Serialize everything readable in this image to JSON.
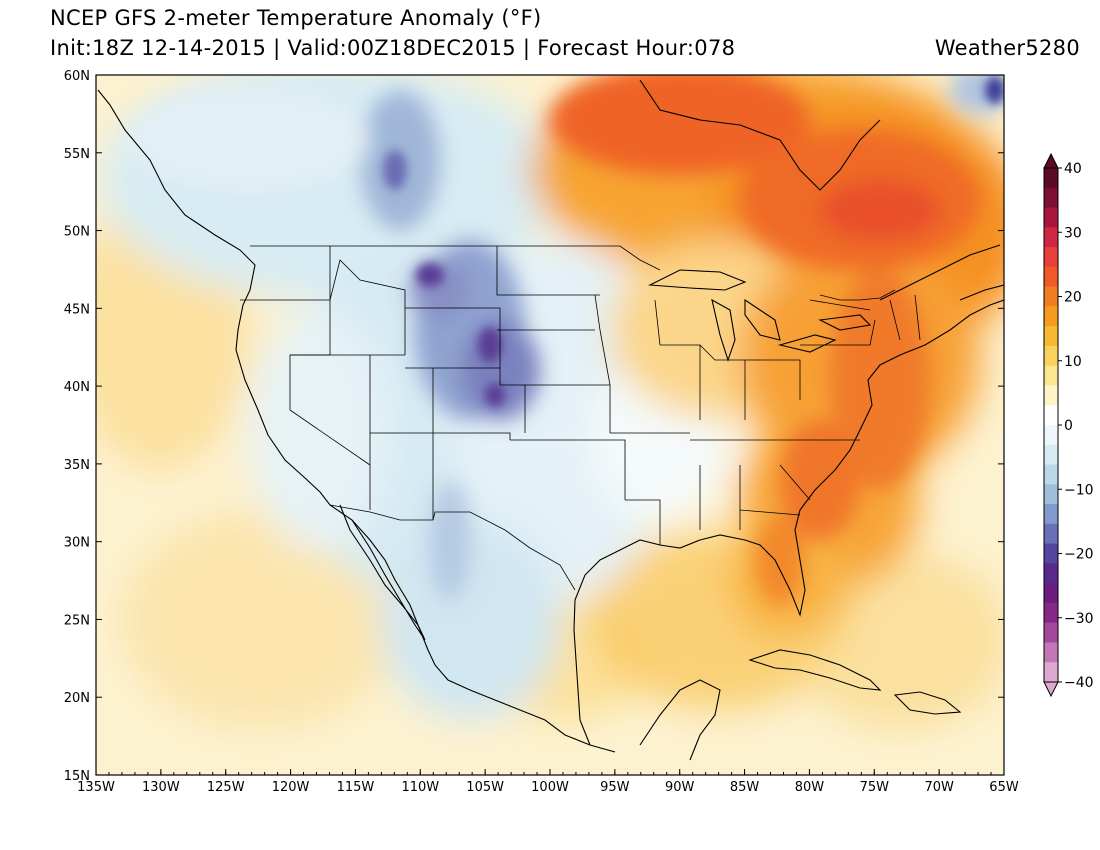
{
  "title": {
    "line1": "NCEP GFS 2-meter Temperature Anomaly (°F)",
    "line2": "Init:18Z 12-14-2015 | Valid:00Z18DEC2015 | Forecast Hour:078",
    "credit": "Weather5280"
  },
  "map": {
    "projection": "lat-lon",
    "lon_range": [
      -135,
      -65
    ],
    "lat_range": [
      15,
      60
    ],
    "lon_tick_labels": [
      "135W",
      "130W",
      "125W",
      "120W",
      "115W",
      "110W",
      "105W",
      "100W",
      "95W",
      "90W",
      "85W",
      "80W",
      "75W",
      "70W",
      "65W"
    ],
    "lat_tick_labels": [
      "15N",
      "20N",
      "25N",
      "30N",
      "35N",
      "40N",
      "45N",
      "50N",
      "55N",
      "60N"
    ]
  },
  "colorbar": {
    "labels": [
      "40",
      "30",
      "20",
      "10",
      "0",
      "−10",
      "−20",
      "−30",
      "−40"
    ],
    "range": [
      -40,
      40
    ],
    "colors_top_to_bottom": [
      "#5a0a24",
      "#7d0f32",
      "#a8153f",
      "#d02745",
      "#e8403a",
      "#f05a28",
      "#f27c20",
      "#f59b22",
      "#f7b932",
      "#fad15a",
      "#fce690",
      "#fff4c6",
      "#ffffff",
      "#eef7fb",
      "#d6ebf3",
      "#bcd8e8",
      "#9fbedc",
      "#8299cc",
      "#6a70b8",
      "#5544a0",
      "#5a2a8a",
      "#6a1d7e",
      "#842a86",
      "#a2489a",
      "#c277b6",
      "#dfa8d0"
    ]
  }
}
